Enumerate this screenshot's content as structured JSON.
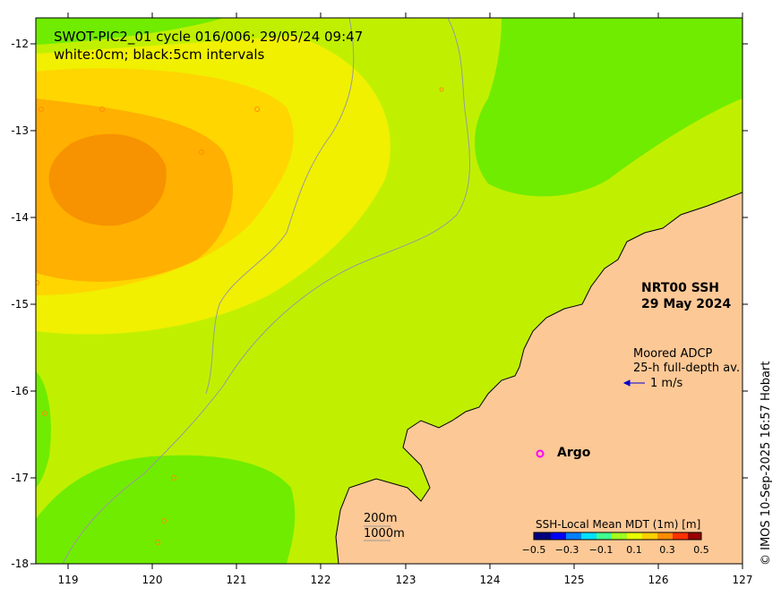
{
  "title": {
    "line1": "SWOT-PIC2_01 cycle 016/006; 29/05/24 09:47",
    "line2": "white:0cm; black:5cm intervals"
  },
  "axes": {
    "lon_ticks": [
      "119",
      "120",
      "121",
      "122",
      "123",
      "124",
      "125",
      "126",
      "127"
    ],
    "lat_ticks": [
      "-12",
      "-13",
      "-14",
      "-15",
      "-16",
      "-17",
      "-18"
    ],
    "lon_range": [
      118.6,
      127
    ],
    "lat_range": [
      -18,
      -11.7
    ]
  },
  "product": {
    "line1": "NRT00 SSH",
    "line2": "29 May 2024"
  },
  "adcp": {
    "line1": "Moored ADCP",
    "line2": "25-h full-depth av.",
    "scale": "1 m/s"
  },
  "argo": {
    "marker": "o",
    "label": "Argo"
  },
  "isobaths": {
    "shallow": "200m",
    "deep": "1000m"
  },
  "colorbar": {
    "title": "SSH-Local Mean MDT (1m) [m]",
    "ticks": [
      "−0.5",
      "−0.3",
      "−0.1",
      "0.1",
      "0.3",
      "0.5"
    ],
    "range": [
      -0.5,
      0.5
    ],
    "colors": [
      "#00007f",
      "#0000ff",
      "#0080ff",
      "#00e0ff",
      "#40ff90",
      "#a0ff20",
      "#e8ff00",
      "#ffd000",
      "#ff8c00",
      "#ff3000",
      "#9a0000"
    ]
  },
  "credit": "© IMOS 10-Sep-2025 16:57 Hobart",
  "colors": {
    "land": "#fcc896",
    "ssh_zero": "#c0f000",
    "ssh_low": "#70ec00",
    "ssh_high_1": "#f0f000",
    "ssh_high_2": "#ffd600",
    "ssh_high_3": "#ffb000",
    "ssh_high_4": "#f79200",
    "argo_marker": "#ff00ff",
    "adcp_arrow": "#0000cc"
  }
}
